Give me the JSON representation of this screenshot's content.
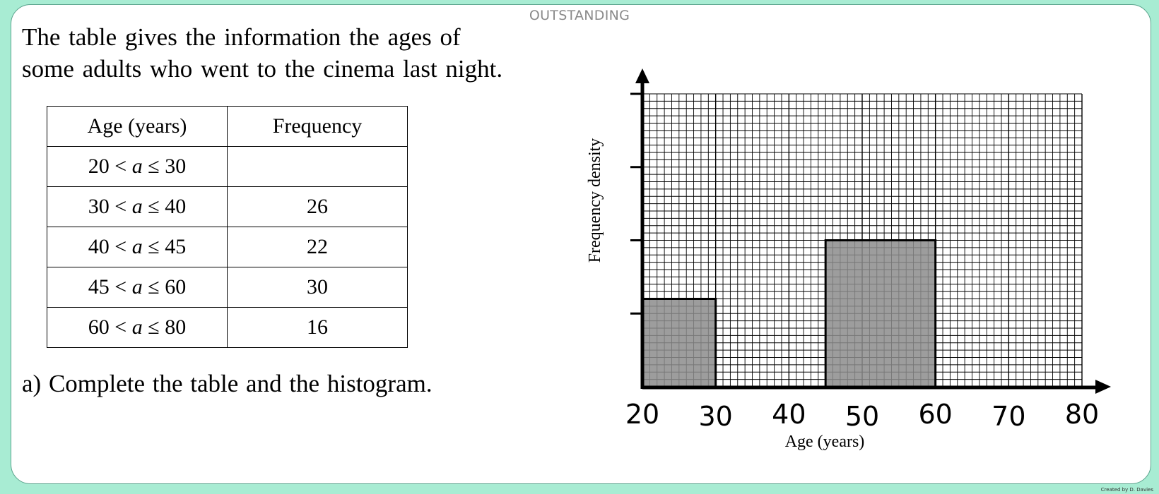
{
  "heading": "OUTSTANDING",
  "intro": {
    "line1": "The table gives the information the ages of",
    "line2": "some adults who went to the cinema last night."
  },
  "table": {
    "headers": [
      "Age (years)",
      "Frequency"
    ],
    "rows": [
      {
        "lo": "20",
        "hi": "30",
        "frequency": ""
      },
      {
        "lo": "30",
        "hi": "40",
        "frequency": "26"
      },
      {
        "lo": "40",
        "hi": "45",
        "frequency": "22"
      },
      {
        "lo": "45",
        "hi": "60",
        "frequency": "30"
      },
      {
        "lo": "60",
        "hi": "80",
        "frequency": "16"
      }
    ],
    "variable": "a"
  },
  "question": "a) Complete the table and the histogram.",
  "credit": "Created by D. Davies",
  "chart_data": {
    "type": "bar",
    "subtype": "histogram",
    "xlabel": "Age (years)",
    "ylabel": "Frequency density",
    "xlim": [
      20,
      80
    ],
    "x_ticks": [
      20,
      30,
      40,
      50,
      60,
      70,
      80
    ],
    "y_tick_count": 4,
    "grid": true,
    "bars": [
      {
        "x0": 20,
        "x1": 30,
        "height_fraction": 0.3
      },
      {
        "x0": 45,
        "x1": 60,
        "height_fraction": 0.5
      }
    ],
    "colors": {
      "bar_fill": "#8c8c8c",
      "grid": "#000000"
    }
  }
}
